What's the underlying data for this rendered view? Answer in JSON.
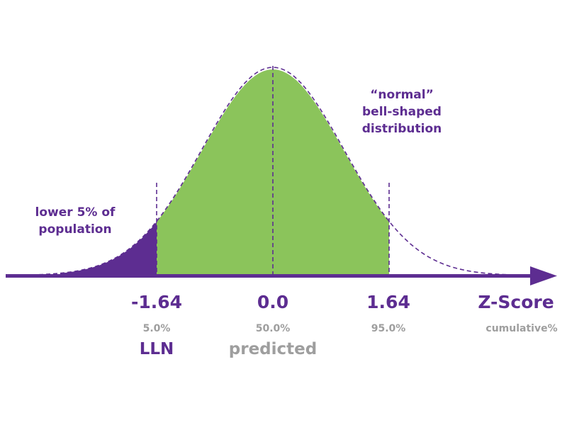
{
  "colors": {
    "purple": "#5d2d91",
    "green": "#8bc45b",
    "grey": "#9e9e9e"
  },
  "annotations": {
    "lower_tail": [
      "lower 5% of",
      "population"
    ],
    "curve_label": [
      "“normal”",
      "bell-shaped",
      "distribution"
    ]
  },
  "axis": {
    "title": "Z-Score",
    "subtitle": "cumulative%",
    "ticks": [
      {
        "value": -1.64,
        "label": "-1.64",
        "cumulative": "5.0%"
      },
      {
        "value": 0.0,
        "label": "0.0",
        "cumulative": "50.0%"
      },
      {
        "value": 1.64,
        "label": "1.64",
        "cumulative": "95.0%"
      }
    ]
  },
  "markers": {
    "lln": "LLN",
    "predicted": "predicted"
  },
  "chart_data": {
    "type": "area",
    "distribution": "normal",
    "mean": 0,
    "sd": 1,
    "regions": [
      {
        "from": -3,
        "to": -1.64,
        "fill": "purple"
      },
      {
        "from": -1.64,
        "to": 1.64,
        "fill": "green"
      }
    ],
    "xlim": [
      -3,
      3
    ]
  }
}
